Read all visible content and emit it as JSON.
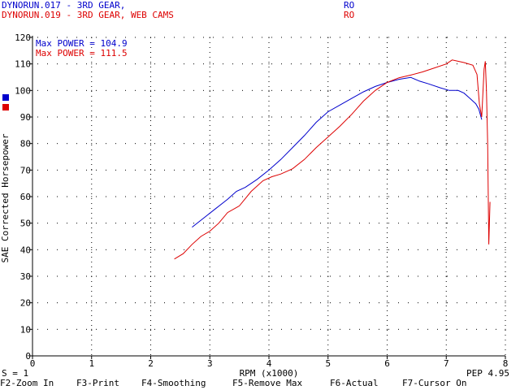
{
  "header": {
    "run1": {
      "name": "DYNORUN.017 - 3RD GEAR,",
      "code": "RO",
      "color": "#0000cc"
    },
    "run2": {
      "name": "DYNORUN.019 - 3RD GEAR, WEB CAMS",
      "code": "RO",
      "color": "#dd0000"
    }
  },
  "status": {
    "smoothing": "S = 1",
    "pep": "PEP 4.95"
  },
  "function_keys": [
    {
      "label": "F2-Zoom In"
    },
    {
      "label": "F3-Print"
    },
    {
      "label": "F4-Smoothing"
    },
    {
      "label": "F5-Remove Max"
    },
    {
      "label": "F6-Actual"
    },
    {
      "label": "F7-Cursor On"
    }
  ],
  "chart_data": {
    "type": "line",
    "xlabel": "RPM (x1000)",
    "ylabel": "SAE Corrected Horsepower",
    "xlim": [
      0,
      8
    ],
    "ylim": [
      0,
      120
    ],
    "x_ticks": [
      0,
      1,
      2,
      3,
      4,
      5,
      6,
      7,
      8
    ],
    "y_ticks": [
      0,
      10,
      20,
      30,
      40,
      50,
      60,
      70,
      80,
      90,
      100,
      110,
      120
    ],
    "grid": true,
    "legend": "top-left",
    "annotations": [
      {
        "text": "Max POWER = 104.9",
        "color": "#0000cc"
      },
      {
        "text": "Max POWER = 111.5",
        "color": "#dd0000"
      }
    ],
    "series": [
      {
        "color": "#0000cc",
        "points": [
          [
            2.7,
            48.5
          ],
          [
            2.9,
            52
          ],
          [
            3.1,
            55.5
          ],
          [
            3.3,
            59
          ],
          [
            3.45,
            62
          ],
          [
            3.6,
            63.5
          ],
          [
            3.8,
            66.5
          ],
          [
            4.0,
            70
          ],
          [
            4.2,
            74
          ],
          [
            4.4,
            78.5
          ],
          [
            4.6,
            83
          ],
          [
            4.8,
            88
          ],
          [
            5.0,
            92
          ],
          [
            5.2,
            94.5
          ],
          [
            5.4,
            97
          ],
          [
            5.6,
            99.5
          ],
          [
            5.8,
            101.5
          ],
          [
            6.0,
            103
          ],
          [
            6.2,
            104.2
          ],
          [
            6.4,
            104.9
          ],
          [
            6.55,
            103.5
          ],
          [
            6.7,
            102.5
          ],
          [
            6.9,
            101
          ],
          [
            7.05,
            100
          ],
          [
            7.2,
            100
          ],
          [
            7.3,
            99
          ],
          [
            7.4,
            97
          ],
          [
            7.5,
            95
          ],
          [
            7.55,
            93
          ],
          [
            7.6,
            89
          ]
        ]
      },
      {
        "color": "#dd0000",
        "points": [
          [
            2.4,
            36.5
          ],
          [
            2.55,
            38.5
          ],
          [
            2.7,
            42
          ],
          [
            2.85,
            45
          ],
          [
            3.0,
            47
          ],
          [
            3.15,
            50
          ],
          [
            3.3,
            54
          ],
          [
            3.5,
            56.5
          ],
          [
            3.7,
            62
          ],
          [
            3.9,
            66
          ],
          [
            4.05,
            67.5
          ],
          [
            4.2,
            68.5
          ],
          [
            4.4,
            70.5
          ],
          [
            4.6,
            74
          ],
          [
            4.8,
            78.5
          ],
          [
            5.0,
            82.5
          ],
          [
            5.2,
            86.5
          ],
          [
            5.4,
            91
          ],
          [
            5.6,
            96
          ],
          [
            5.8,
            100
          ],
          [
            6.0,
            103
          ],
          [
            6.2,
            104.8
          ],
          [
            6.4,
            105.8
          ],
          [
            6.6,
            107
          ],
          [
            6.8,
            108.5
          ],
          [
            7.0,
            110
          ],
          [
            7.1,
            111.5
          ],
          [
            7.3,
            110.5
          ],
          [
            7.45,
            109.5
          ],
          [
            7.52,
            106
          ],
          [
            7.56,
            95
          ],
          [
            7.6,
            90
          ],
          [
            7.64,
            108
          ],
          [
            7.66,
            111
          ],
          [
            7.68,
            100
          ],
          [
            7.7,
            80
          ],
          [
            7.72,
            42
          ],
          [
            7.74,
            58
          ]
        ]
      }
    ]
  }
}
